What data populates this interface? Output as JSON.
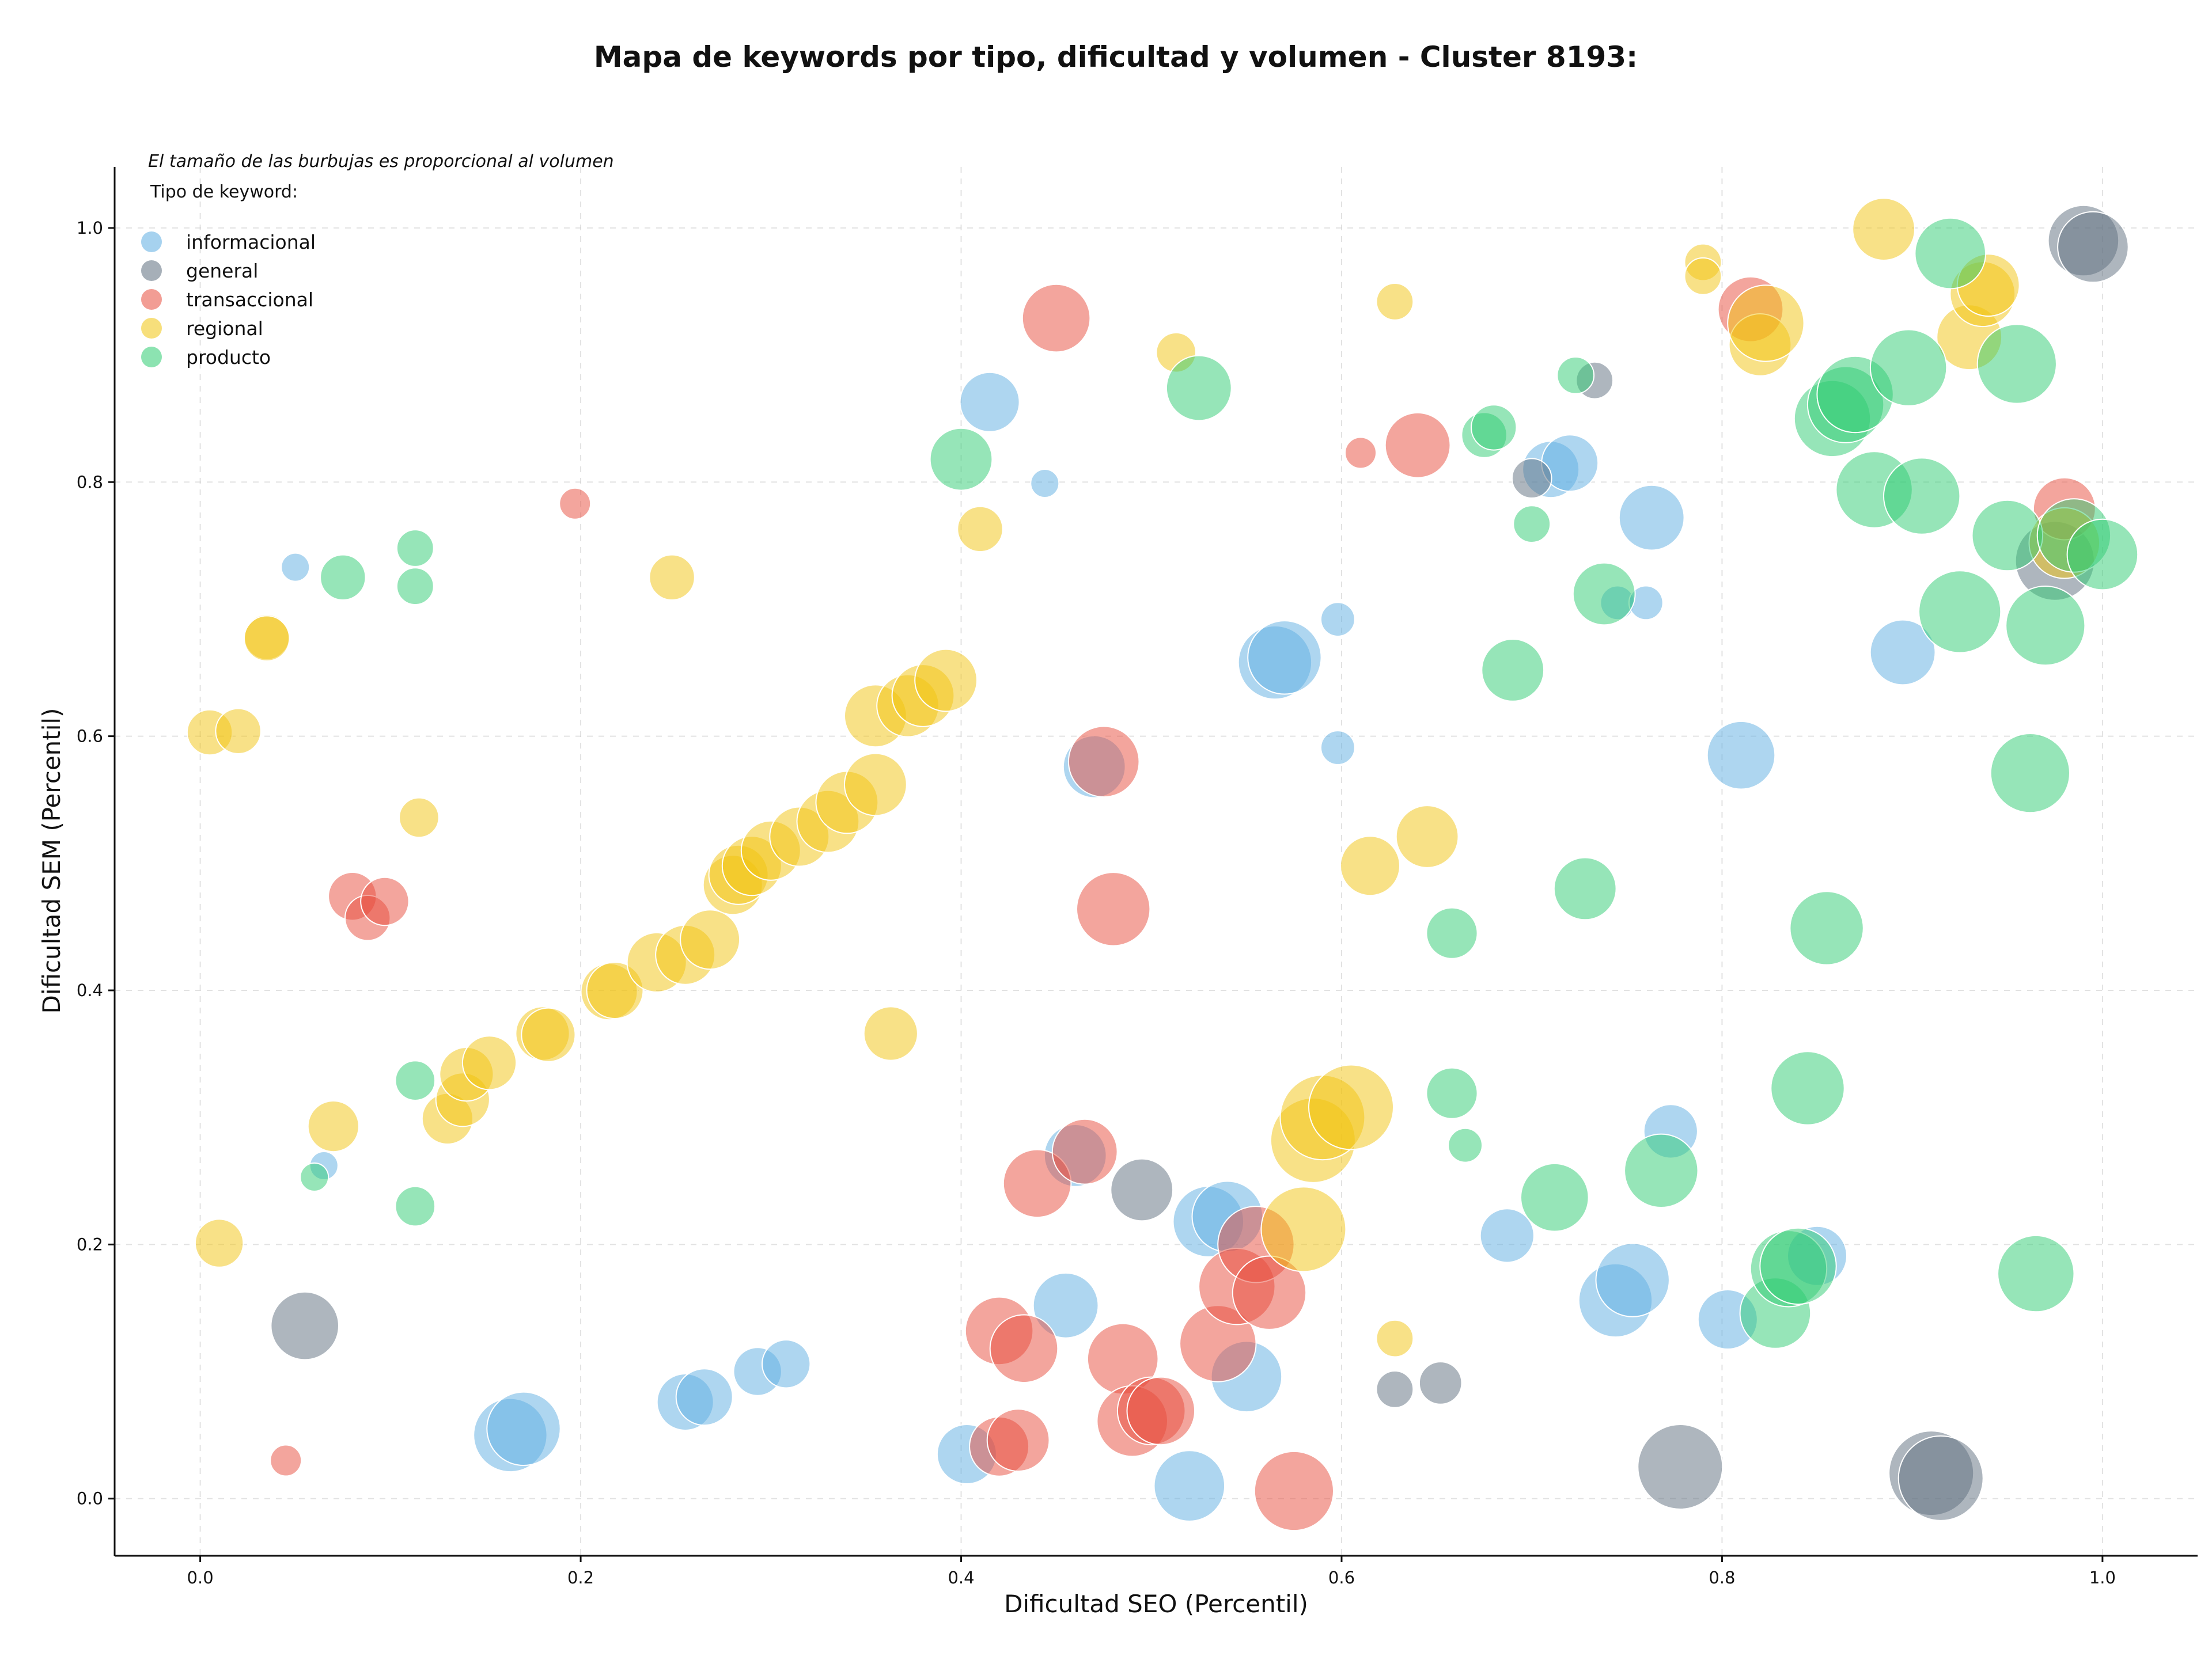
{
  "chart_data": {
    "type": "scatter",
    "title": "Mapa de keywords por tipo, dificultad y volumen - Cluster 8193:",
    "xlabel": "Dificultad SEO (Percentil)",
    "ylabel": "Dificultad SEM (Percentil)",
    "xlim": [
      -0.045,
      1.05
    ],
    "ylim": [
      -0.045,
      1.048
    ],
    "xticks": [
      "0.0",
      "0.2",
      "0.4",
      "0.6",
      "0.8",
      "1.0"
    ],
    "yticks": [
      "0.0",
      "0.2",
      "0.4",
      "0.6",
      "0.8",
      "1.0"
    ],
    "grid": true,
    "note": "El tamaño de las burbujas es proporcional al volumen",
    "legend": {
      "title": "Tipo de keyword:",
      "placement": "top-left"
    },
    "series": [
      {
        "name": "informacional",
        "color": "#5DADE2",
        "points": [
          [
            0.05,
            0.733,
            10
          ],
          [
            0.065,
            0.262,
            10
          ],
          [
            0.163,
            0.05,
            26
          ],
          [
            0.17,
            0.055,
            26
          ],
          [
            0.255,
            0.076,
            20
          ],
          [
            0.265,
            0.08,
            20
          ],
          [
            0.293,
            0.1,
            17
          ],
          [
            0.308,
            0.106,
            17
          ],
          [
            0.403,
            0.035,
            21
          ],
          [
            0.415,
            0.863,
            21
          ],
          [
            0.444,
            0.799,
            10
          ],
          [
            0.455,
            0.152,
            23
          ],
          [
            0.46,
            0.27,
            22
          ],
          [
            0.47,
            0.576,
            22
          ],
          [
            0.52,
            0.01,
            25
          ],
          [
            0.53,
            0.218,
            25
          ],
          [
            0.54,
            0.222,
            25
          ],
          [
            0.55,
            0.096,
            25
          ],
          [
            0.565,
            0.658,
            26
          ],
          [
            0.57,
            0.662,
            26
          ],
          [
            0.598,
            0.692,
            12
          ],
          [
            0.598,
            0.591,
            12
          ],
          [
            0.687,
            0.207,
            19
          ],
          [
            0.71,
            0.81,
            20
          ],
          [
            0.72,
            0.815,
            20
          ],
          [
            0.744,
            0.156,
            26
          ],
          [
            0.753,
            0.172,
            26
          ],
          [
            0.745,
            0.705,
            12
          ],
          [
            0.76,
            0.705,
            12
          ],
          [
            0.763,
            0.772,
            23
          ],
          [
            0.773,
            0.289,
            19
          ],
          [
            0.803,
            0.141,
            21
          ],
          [
            0.81,
            0.585,
            24
          ],
          [
            0.85,
            0.191,
            21
          ],
          [
            0.895,
            0.666,
            23
          ]
        ]
      },
      {
        "name": "general",
        "color": "#5D6D7E",
        "points": [
          [
            0.055,
            0.136,
            24
          ],
          [
            0.495,
            0.243,
            22
          ],
          [
            0.7,
            0.803,
            14
          ],
          [
            0.733,
            0.88,
            13
          ],
          [
            0.628,
            0.086,
            13
          ],
          [
            0.652,
            0.091,
            15
          ],
          [
            0.778,
            0.025,
            30
          ],
          [
            0.91,
            0.02,
            30
          ],
          [
            0.915,
            0.016,
            30
          ],
          [
            0.975,
            0.738,
            28
          ],
          [
            0.99,
            0.99,
            25
          ],
          [
            0.995,
            0.985,
            25
          ]
        ]
      },
      {
        "name": "transaccional",
        "color": "#E74C3C",
        "points": [
          [
            0.045,
            0.03,
            11
          ],
          [
            0.08,
            0.474,
            17
          ],
          [
            0.088,
            0.457,
            16
          ],
          [
            0.097,
            0.47,
            17
          ],
          [
            0.197,
            0.783,
            11
          ],
          [
            0.42,
            0.132,
            24
          ],
          [
            0.42,
            0.041,
            21
          ],
          [
            0.43,
            0.046,
            22
          ],
          [
            0.433,
            0.118,
            24
          ],
          [
            0.44,
            0.248,
            24
          ],
          [
            0.45,
            0.929,
            24
          ],
          [
            0.465,
            0.273,
            23
          ],
          [
            0.475,
            0.58,
            25
          ],
          [
            0.48,
            0.464,
            26
          ],
          [
            0.485,
            0.11,
            25
          ],
          [
            0.49,
            0.061,
            25
          ],
          [
            0.5,
            0.069,
            24
          ],
          [
            0.505,
            0.069,
            24
          ],
          [
            0.535,
            0.122,
            27
          ],
          [
            0.545,
            0.167,
            27
          ],
          [
            0.555,
            0.2,
            27
          ],
          [
            0.562,
            0.162,
            26
          ],
          [
            0.575,
            0.006,
            28
          ],
          [
            0.61,
            0.823,
            11
          ],
          [
            0.64,
            0.829,
            23
          ],
          [
            0.815,
            0.936,
            23
          ],
          [
            0.98,
            0.779,
            22
          ]
        ]
      },
      {
        "name": "regional",
        "color": "#F1C40F",
        "points": [
          [
            0.005,
            0.603,
            16
          ],
          [
            0.02,
            0.604,
            16
          ],
          [
            0.01,
            0.201,
            17
          ],
          [
            0.035,
            0.678,
            16
          ],
          [
            0.035,
            0.677,
            16
          ],
          [
            0.07,
            0.293,
            18
          ],
          [
            0.115,
            0.536,
            14
          ],
          [
            0.13,
            0.299,
            18
          ],
          [
            0.138,
            0.314,
            19
          ],
          [
            0.14,
            0.334,
            19
          ],
          [
            0.152,
            0.343,
            19
          ],
          [
            0.18,
            0.366,
            19
          ],
          [
            0.183,
            0.365,
            19
          ],
          [
            0.215,
            0.399,
            20
          ],
          [
            0.218,
            0.4,
            20
          ],
          [
            0.24,
            0.422,
            21
          ],
          [
            0.248,
            0.725,
            16
          ],
          [
            0.255,
            0.428,
            21
          ],
          [
            0.268,
            0.44,
            21
          ],
          [
            0.28,
            0.483,
            21
          ],
          [
            0.283,
            0.491,
            21
          ],
          [
            0.29,
            0.498,
            21
          ],
          [
            0.3,
            0.51,
            21
          ],
          [
            0.315,
            0.521,
            21
          ],
          [
            0.33,
            0.533,
            22
          ],
          [
            0.34,
            0.548,
            22
          ],
          [
            0.355,
            0.562,
            22
          ],
          [
            0.355,
            0.616,
            22
          ],
          [
            0.363,
            0.366,
            19
          ],
          [
            0.372,
            0.624,
            22
          ],
          [
            0.38,
            0.632,
            22
          ],
          [
            0.392,
            0.644,
            22
          ],
          [
            0.41,
            0.763,
            16
          ],
          [
            0.513,
            0.902,
            14
          ],
          [
            0.58,
            0.212,
            30
          ],
          [
            0.585,
            0.282,
            30
          ],
          [
            0.59,
            0.3,
            30
          ],
          [
            0.605,
            0.308,
            30
          ],
          [
            0.615,
            0.498,
            21
          ],
          [
            0.628,
            0.942,
            13
          ],
          [
            0.628,
            0.126,
            13
          ],
          [
            0.645,
            0.521,
            22
          ],
          [
            0.79,
            0.973,
            13
          ],
          [
            0.79,
            0.962,
            13
          ],
          [
            0.82,
            0.908,
            22
          ],
          [
            0.823,
            0.925,
            27
          ],
          [
            0.885,
            0.999,
            22
          ],
          [
            0.93,
            0.914,
            23
          ],
          [
            0.937,
            0.948,
            23
          ],
          [
            0.94,
            0.955,
            22
          ],
          [
            0.98,
            0.752,
            25
          ]
        ]
      },
      {
        "name": "producto",
        "color": "#2ECC71",
        "points": [
          [
            0.06,
            0.253,
            10
          ],
          [
            0.075,
            0.725,
            16
          ],
          [
            0.113,
            0.718,
            13
          ],
          [
            0.113,
            0.748,
            13
          ],
          [
            0.113,
            0.329,
            14
          ],
          [
            0.113,
            0.23,
            14
          ],
          [
            0.4,
            0.818,
            22
          ],
          [
            0.525,
            0.874,
            23
          ],
          [
            0.658,
            0.319,
            18
          ],
          [
            0.658,
            0.445,
            18
          ],
          [
            0.665,
            0.278,
            12
          ],
          [
            0.675,
            0.837,
            16
          ],
          [
            0.68,
            0.843,
            16
          ],
          [
            0.69,
            0.652,
            22
          ],
          [
            0.7,
            0.767,
            13
          ],
          [
            0.712,
            0.237,
            24
          ],
          [
            0.723,
            0.884,
            13
          ],
          [
            0.728,
            0.48,
            22
          ],
          [
            0.738,
            0.712,
            22
          ],
          [
            0.768,
            0.258,
            26
          ],
          [
            0.828,
            0.146,
            25
          ],
          [
            0.835,
            0.181,
            27
          ],
          [
            0.84,
            0.183,
            27
          ],
          [
            0.845,
            0.323,
            26
          ],
          [
            0.855,
            0.449,
            26
          ],
          [
            0.858,
            0.85,
            27
          ],
          [
            0.865,
            0.861,
            27
          ],
          [
            0.87,
            0.869,
            27
          ],
          [
            0.88,
            0.794,
            27
          ],
          [
            0.898,
            0.89,
            27
          ],
          [
            0.905,
            0.789,
            27
          ],
          [
            0.92,
            0.98,
            25
          ],
          [
            0.925,
            0.698,
            29
          ],
          [
            0.95,
            0.758,
            25
          ],
          [
            0.955,
            0.893,
            28
          ],
          [
            0.962,
            0.571,
            28
          ],
          [
            0.965,
            0.177,
            27
          ],
          [
            0.97,
            0.687,
            28
          ],
          [
            0.985,
            0.758,
            26
          ],
          [
            1.0,
            0.743,
            25
          ]
        ]
      }
    ]
  }
}
